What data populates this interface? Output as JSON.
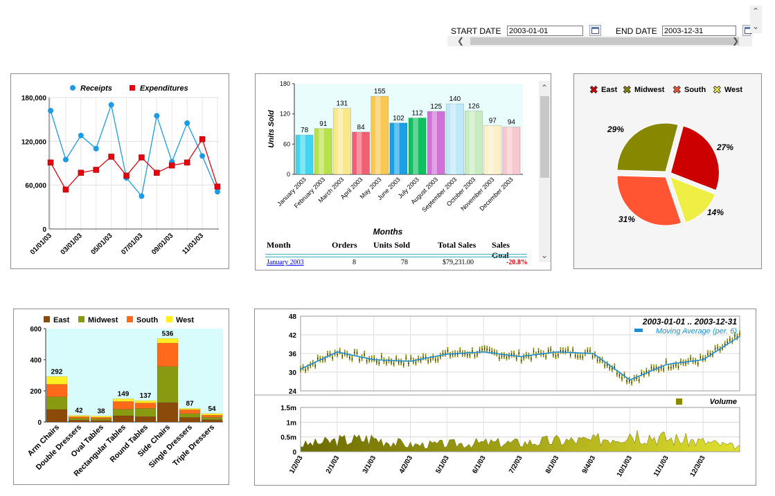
{
  "datebar": {
    "start_label": "START DATE",
    "start_value": "2003-01-01",
    "end_label": "END DATE",
    "end_value": "2003-12-31"
  },
  "line_chart": {
    "legend": [
      "Receipts",
      "Expenditures"
    ],
    "colors": {
      "receipts": "#1a9be8",
      "expenditures": "#e8000d"
    },
    "y_ticks": [
      "180,000",
      "120,000",
      "60,000",
      "0"
    ],
    "x_ticks": [
      "01/01/03",
      "03/01/03",
      "05/01/03",
      "07/01/03",
      "09/01/03",
      "11/01/03"
    ],
    "chart_data": {
      "type": "line",
      "ylim": [
        0,
        180000
      ],
      "series": [
        {
          "name": "Receipts",
          "values": [
            162000,
            95000,
            128000,
            110000,
            170000,
            70000,
            45000,
            155000,
            92000,
            145000,
            100000,
            51000
          ]
        },
        {
          "name": "Expenditures",
          "values": [
            91000,
            54000,
            77000,
            81000,
            99000,
            73000,
            98000,
            77000,
            87000,
            91000,
            123000,
            58000
          ]
        }
      ]
    }
  },
  "bar_chart": {
    "ylabel": "Units Sold",
    "xlabel": "Months",
    "y_ticks": [
      "180",
      "120",
      "60",
      "0"
    ],
    "chart_data": {
      "type": "bar",
      "ylim": [
        0,
        180
      ],
      "categories": [
        "January 2003",
        "February 2003",
        "March 2003",
        "April 2003",
        "May 2003",
        "June 2003",
        "July 2003",
        "August 2003",
        "September 2003",
        "October 2003",
        "November 2003",
        "December 2003"
      ],
      "values": [
        78,
        91,
        131,
        84,
        155,
        102,
        112,
        125,
        140,
        126,
        97,
        94
      ],
      "colors": [
        "#3fd7f0",
        "#b8e04a",
        "#f8e88a",
        "#f06070",
        "#f8c850",
        "#1aa0e8",
        "#10c060",
        "#d070d8",
        "#bfe8f8",
        "#c8ecc0",
        "#fbf0c8",
        "#f8c8d0"
      ]
    },
    "table": {
      "headers": [
        "Month",
        "Orders",
        "Units Sold",
        "Total Sales",
        "Sales Goal"
      ],
      "row": {
        "month": "January 2003",
        "orders": "8",
        "units": "78",
        "total": "$79,231.00",
        "goal": "-20.8%"
      }
    }
  },
  "pie_chart": {
    "legend": [
      "East",
      "Midwest",
      "South",
      "West"
    ],
    "chart_data": {
      "type": "pie",
      "labels": [
        "East",
        "West",
        "South",
        "Midwest"
      ],
      "values": [
        27,
        14,
        31,
        29
      ],
      "value_labels": [
        "27%",
        "14%",
        "31%",
        "29%"
      ],
      "colors": [
        "#cc0000",
        "#eeee44",
        "#ff5533",
        "#888800"
      ]
    }
  },
  "stacked_bar": {
    "legend": [
      "East",
      "Midwest",
      "South",
      "West"
    ],
    "colors": [
      "#8b4a0a",
      "#8a9a10",
      "#ff6a1a",
      "#ffee22"
    ],
    "y_ticks": [
      "600",
      "400",
      "200",
      "0"
    ],
    "chart_data": {
      "type": "bar",
      "ylim": [
        0,
        600
      ],
      "categories": [
        "Arm Chairs",
        "Double Dressers",
        "Oval Tables",
        "Rectangular Tables",
        "Round Tables",
        "Side Chairs",
        "Single Dressers",
        "Triple Dressers"
      ],
      "totals": [
        292,
        42,
        38,
        149,
        137,
        536,
        87,
        54
      ],
      "series": [
        {
          "name": "East",
          "values": [
            80,
            12,
            10,
            40,
            35,
            125,
            30,
            15
          ]
        },
        {
          "name": "Midwest",
          "values": [
            82,
            12,
            10,
            42,
            52,
            232,
            24,
            15
          ]
        },
        {
          "name": "South",
          "values": [
            80,
            10,
            10,
            50,
            35,
            150,
            25,
            14
          ]
        },
        {
          "name": "West",
          "values": [
            50,
            8,
            8,
            17,
            15,
            29,
            8,
            10
          ]
        }
      ]
    }
  },
  "stock_chart": {
    "title": "2003-01-01 .. 2003-12-31",
    "ma_label": "Moving Average (per. 6)",
    "volume_label": "Volume",
    "price_ticks": [
      "48",
      "42",
      "36",
      "30",
      "24"
    ],
    "volume_ticks": [
      "1.5m",
      "1m",
      "0.5m",
      "0"
    ],
    "x_ticks": [
      "1/2/03",
      "2/1/03",
      "3/1/03",
      "4/2/03",
      "5/1/03",
      "6/1/03",
      "7/2/03",
      "8/1/03",
      "9/4/03",
      "10/1/03",
      "11/1/03",
      "12/3/03"
    ],
    "chart_data": {
      "type": "line",
      "ylim": [
        24,
        48
      ],
      "x": [
        "1/2/03",
        "2/1/03",
        "3/1/03",
        "4/2/03",
        "5/1/03",
        "6/1/03",
        "7/2/03",
        "8/1/03",
        "9/4/03",
        "10/1/03",
        "11/1/03",
        "12/3/03",
        "12/31/03"
      ],
      "series": [
        {
          "name": "Moving Average (per. 6)",
          "values": [
            31,
            36.5,
            34,
            33.5,
            35.8,
            36.5,
            35,
            36.5,
            36,
            27.5,
            32.5,
            34,
            41.5
          ]
        }
      ],
      "volume": [
        0.3,
        0.5,
        0.6,
        0.3,
        0.35,
        0.4,
        0.4,
        0.5,
        0.5,
        0.9,
        0.6,
        0.45,
        0.2
      ]
    }
  }
}
